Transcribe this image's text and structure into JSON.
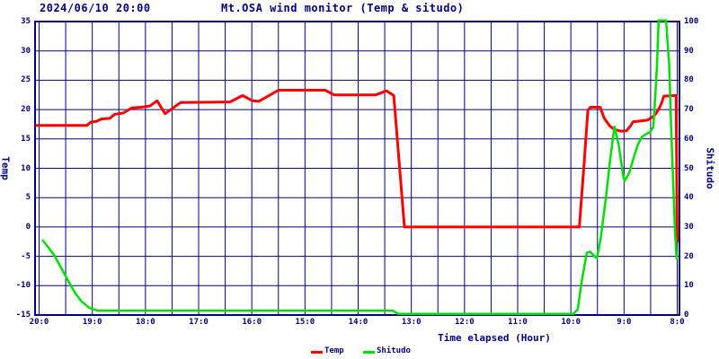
{
  "header": {
    "datetime": "2024/06/10 20:00",
    "title": "Mt.OSA wind monitor (Temp & situdo)"
  },
  "chart_data": {
    "type": "line",
    "title": "Mt.OSA wind monitor (Temp & situdo)",
    "datetime": "2024/06/10 20:00",
    "grid": true,
    "frame_color": "#000080",
    "background": "#ffffff",
    "x_axis": {
      "label": "Time elapsed (Hour)",
      "note": "clock time, most recent (20:00) at left, 8:00 at right",
      "start_hour": 20,
      "end_hour": 8,
      "grid_interval_hours": 0.5,
      "tick_labels": [
        "20:0",
        "19:0",
        "18:0",
        "17:0",
        "16:0",
        "15:0",
        "14:0",
        "13:0",
        "12:0",
        "11:0",
        "10:0",
        "9:0",
        "8:0"
      ]
    },
    "y_left": {
      "label": "Temp",
      "min": -15,
      "max": 35,
      "tick_step": 5,
      "tick_labels": [
        "35",
        "30",
        "25",
        "20",
        "15",
        "10",
        "5",
        "0",
        "-5",
        "-10",
        "-15"
      ]
    },
    "y_right": {
      "label": "Shitudo",
      "min": 0,
      "max": 100,
      "tick_step": 10,
      "tick_labels": [
        "100",
        "90",
        "80",
        "70",
        "60",
        "50",
        "40",
        "30",
        "20",
        "10",
        "0"
      ]
    },
    "legend": {
      "position": "bottom-center",
      "entries": [
        {
          "label": "Temp",
          "color": "#ff0000"
        },
        {
          "label": "Shitudo",
          "color": "#00e000"
        }
      ]
    },
    "series": [
      {
        "name": "Temp",
        "axis": "left",
        "color": "#ff0000",
        "width": 3,
        "points": [
          [
            20.07,
            17.3
          ],
          [
            19.1,
            17.3
          ],
          [
            19.02,
            17.9
          ],
          [
            18.92,
            18.0
          ],
          [
            18.83,
            18.4
          ],
          [
            18.67,
            18.5
          ],
          [
            18.58,
            19.2
          ],
          [
            18.42,
            19.4
          ],
          [
            18.25,
            20.3
          ],
          [
            18.08,
            20.4
          ],
          [
            17.92,
            20.6
          ],
          [
            17.78,
            21.5
          ],
          [
            17.63,
            19.3
          ],
          [
            17.34,
            21.2
          ],
          [
            16.41,
            21.3
          ],
          [
            16.17,
            22.4
          ],
          [
            15.99,
            21.5
          ],
          [
            15.87,
            21.4
          ],
          [
            15.5,
            23.3
          ],
          [
            14.62,
            23.3
          ],
          [
            14.45,
            22.5
          ],
          [
            13.67,
            22.5
          ],
          [
            13.47,
            23.2
          ],
          [
            13.33,
            22.4
          ],
          [
            13.13,
            0
          ],
          [
            9.84,
            0
          ],
          [
            9.75,
            11
          ],
          [
            9.68,
            19.9
          ],
          [
            9.63,
            20.4
          ],
          [
            9.45,
            20.4
          ],
          [
            9.37,
            18.5
          ],
          [
            9.27,
            17.2
          ],
          [
            9.18,
            16.6
          ],
          [
            9.05,
            16.3
          ],
          [
            8.95,
            16.4
          ],
          [
            8.88,
            17.2
          ],
          [
            8.83,
            17.9
          ],
          [
            8.56,
            18.2
          ],
          [
            8.47,
            18.7
          ],
          [
            8.4,
            19.3
          ],
          [
            8.34,
            20.2
          ],
          [
            8.29,
            21.2
          ],
          [
            8.25,
            22.3
          ],
          [
            8.02,
            22.4
          ],
          [
            8.0,
            -2.6
          ]
        ]
      },
      {
        "name": "Shitudo",
        "axis": "right",
        "color": "#00e000",
        "width": 2.5,
        "points": [
          [
            19.94,
            25.7
          ],
          [
            19.72,
            20.5
          ],
          [
            19.58,
            15.9
          ],
          [
            19.46,
            11.9
          ],
          [
            19.33,
            7.7
          ],
          [
            19.2,
            4.6
          ],
          [
            19.05,
            2.4
          ],
          [
            18.9,
            1.5
          ],
          [
            13.35,
            1.5
          ],
          [
            13.25,
            0.4
          ],
          [
            9.95,
            0.4
          ],
          [
            9.87,
            2
          ],
          [
            9.8,
            11
          ],
          [
            9.7,
            21.2
          ],
          [
            9.64,
            21.6
          ],
          [
            9.55,
            19.9
          ],
          [
            9.51,
            19.4
          ],
          [
            9.44,
            26
          ],
          [
            9.34,
            40
          ],
          [
            9.26,
            53
          ],
          [
            9.18,
            64.2
          ],
          [
            9.1,
            58
          ],
          [
            9.02,
            48
          ],
          [
            8.99,
            45.7
          ],
          [
            8.9,
            48.5
          ],
          [
            8.83,
            53
          ],
          [
            8.74,
            58
          ],
          [
            8.66,
            60.8
          ],
          [
            8.57,
            61.8
          ],
          [
            8.51,
            62.3
          ],
          [
            8.45,
            64
          ],
          [
            8.42,
            72
          ],
          [
            8.38,
            85
          ],
          [
            8.35,
            100.4
          ],
          [
            8.21,
            100.4
          ],
          [
            8.15,
            85
          ],
          [
            8.11,
            62
          ],
          [
            8.07,
            42
          ],
          [
            8.04,
            28
          ],
          [
            8.01,
            19
          ]
        ]
      }
    ]
  }
}
